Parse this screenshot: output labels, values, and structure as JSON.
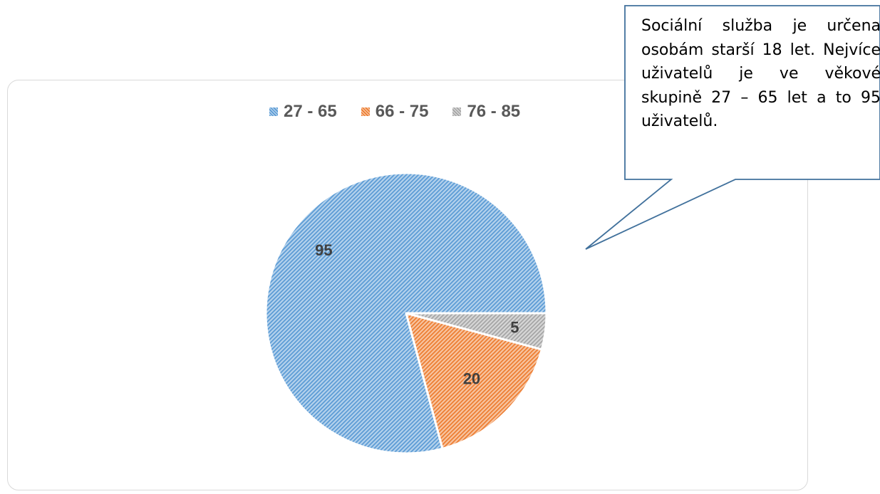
{
  "chart_data": {
    "type": "pie",
    "categories": [
      "27 - 65",
      "66 - 75",
      "76 - 85"
    ],
    "values": [
      95,
      20,
      5
    ],
    "colors": [
      "#5b9bd5",
      "#ed7d31",
      "#a5a5a5"
    ],
    "title": "",
    "legend_position": "top",
    "data_labels": [
      "95",
      "20",
      "5"
    ]
  },
  "callout": {
    "text": "Sociální služba je určena osobám starší 18 let. Nejvíce uživatelů je ve věkové skupině 27 – 65 let a to 95 uživatelů."
  }
}
